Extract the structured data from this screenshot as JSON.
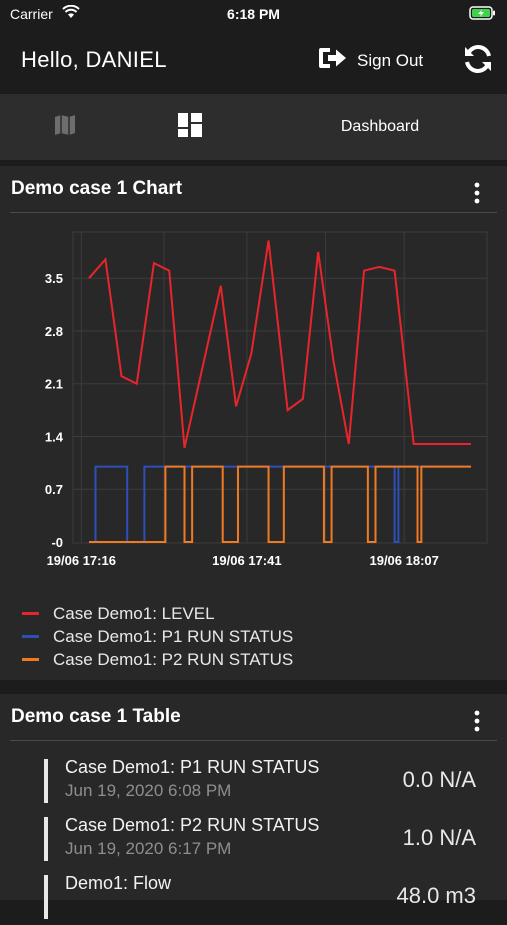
{
  "status_bar": {
    "carrier": "Carrier",
    "time": "6:18 PM"
  },
  "header": {
    "greeting": "Hello, DANIEL",
    "sign_out_label": "Sign Out"
  },
  "tabs": [
    {
      "icon": "map-icon"
    },
    {
      "icon": "dashboard-grid-icon"
    },
    {
      "label": "Dashboard"
    }
  ],
  "chart_card": {
    "title": "Demo case 1 Chart"
  },
  "table_card": {
    "title": "Demo case 1 Table"
  },
  "colors": {
    "level": "#e8252a",
    "p1": "#2f4fb8",
    "p2": "#ef7a22"
  },
  "chart_data": {
    "type": "line",
    "title": "Demo case 1 Chart",
    "xlabel": "",
    "ylabel": "",
    "x_ticks": [
      "19/06 17:16",
      "19/06 17:41",
      "19/06 18:07"
    ],
    "y_ticks": [
      "-0",
      "0.7",
      "1.4",
      "2.1",
      "2.8",
      "3.5"
    ],
    "ylim": [
      0,
      4.1
    ],
    "grid": true,
    "legend_position": "bottom",
    "series": [
      {
        "name": "Case Demo1: LEVEL",
        "step": false,
        "x": [
          0,
          0.043,
          0.085,
          0.125,
          0.17,
          0.21,
          0.25,
          0.345,
          0.385,
          0.425,
          0.47,
          0.52,
          0.56,
          0.6,
          0.64,
          0.68,
          0.72,
          0.76,
          0.8,
          0.85,
          0.885,
          0.96,
          1.0
        ],
        "values": [
          3.5,
          3.75,
          2.2,
          2.1,
          3.7,
          3.6,
          1.25,
          3.4,
          1.8,
          2.5,
          4.0,
          1.75,
          1.9,
          3.85,
          2.4,
          1.3,
          3.6,
          3.65,
          3.6,
          1.3,
          1.3,
          1.3,
          1.3
        ]
      },
      {
        "name": "Case Demo1: P1 RUN STATUS",
        "step": true,
        "x": [
          0,
          0.017,
          0.1,
          0.145,
          0.16,
          0.19,
          0.245,
          0.27,
          0.38,
          0.39,
          0.5,
          0.51,
          0.62,
          0.635,
          0.74,
          0.75,
          0.8,
          0.81,
          1.0
        ],
        "values": [
          0,
          1,
          0,
          1,
          1,
          1,
          1,
          1,
          1,
          1,
          1,
          1,
          1,
          1,
          1,
          1,
          0,
          1,
          1
        ]
      },
      {
        "name": "Case Demo1: P2 RUN STATUS",
        "step": true,
        "x": [
          0,
          0.16,
          0.2,
          0.25,
          0.27,
          0.35,
          0.39,
          0.47,
          0.51,
          0.615,
          0.635,
          0.73,
          0.75,
          0.86,
          0.87,
          1.0
        ],
        "values": [
          0,
          0,
          1,
          0,
          1,
          0,
          1,
          0,
          1,
          0,
          1,
          0,
          1,
          0,
          1,
          1
        ]
      }
    ]
  },
  "table_rows": [
    {
      "name": "Case Demo1: P1 RUN STATUS",
      "date": "Jun 19, 2020 6:08 PM",
      "value": "0.0 N/A"
    },
    {
      "name": "Case Demo1: P2 RUN STATUS",
      "date": "Jun 19, 2020 6:17 PM",
      "value": "1.0 N/A"
    },
    {
      "name": "Demo1: Flow",
      "date": "",
      "value": "48.0 m3"
    }
  ]
}
